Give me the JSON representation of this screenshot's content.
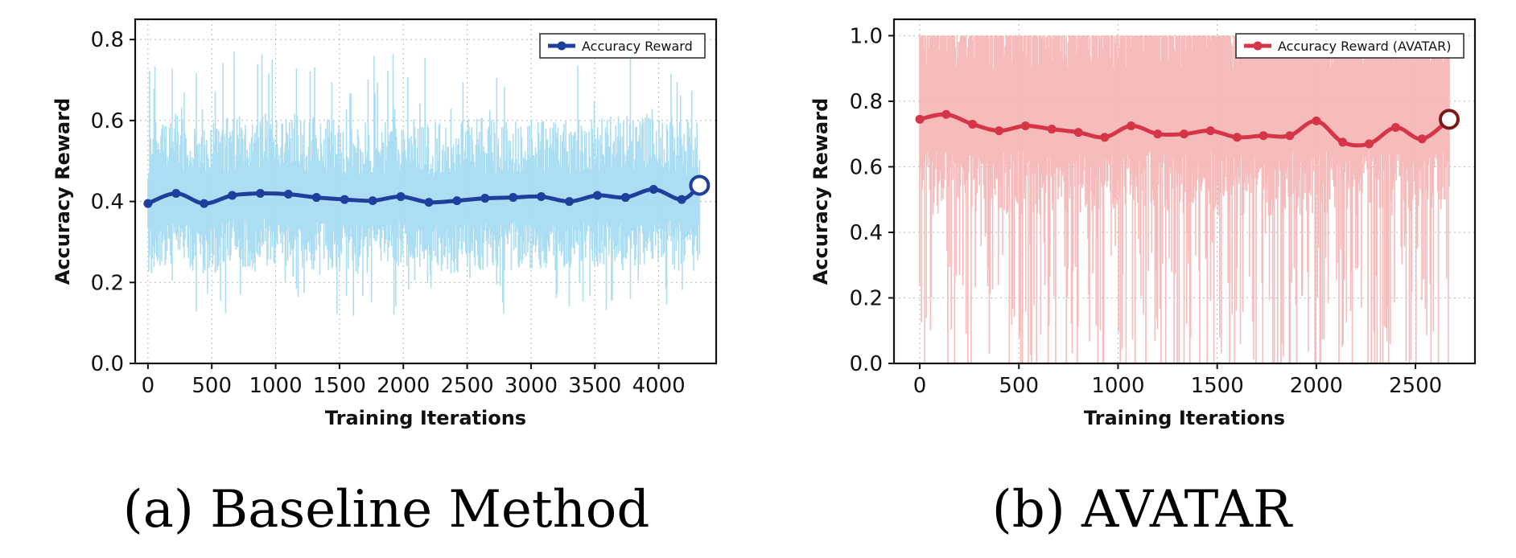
{
  "chart_data": [
    {
      "type": "line",
      "caption": "(a) Baseline Method",
      "xlabel": "Training Iterations",
      "ylabel": "Accuracy Reward",
      "xlim": [
        -100,
        4450
      ],
      "ylim": [
        0.0,
        0.85
      ],
      "xticks": [
        0,
        500,
        1000,
        1500,
        2000,
        2500,
        3000,
        3500,
        4000
      ],
      "yticks": [
        0.0,
        0.2,
        0.4,
        0.6,
        0.8
      ],
      "ytick_labels": [
        "0.0",
        "0.2",
        "0.4",
        "0.6",
        "0.8"
      ],
      "grid": true,
      "legend_position": "top-right",
      "colors": {
        "raw": "#a8dcf2",
        "line": "#1f3f9c",
        "endpoint": "#1f3f9c"
      },
      "raw_band": {
        "x_start": 0,
        "x_end": 4320,
        "typical_low": 0.28,
        "typical_high": 0.55,
        "spike_min": 0.1,
        "spike_max": 0.77
      },
      "series": [
        {
          "name": "Accuracy Reward",
          "x": [
            0,
            220,
            440,
            660,
            880,
            1100,
            1320,
            1540,
            1760,
            1980,
            2200,
            2420,
            2640,
            2860,
            3080,
            3300,
            3520,
            3740,
            3960,
            4180
          ],
          "values": [
            0.395,
            0.42,
            0.395,
            0.415,
            0.42,
            0.418,
            0.41,
            0.405,
            0.402,
            0.412,
            0.398,
            0.402,
            0.408,
            0.41,
            0.412,
            0.4,
            0.415,
            0.41,
            0.43,
            0.405
          ],
          "endpoint": {
            "x": 4320,
            "y": 0.44
          }
        }
      ]
    },
    {
      "type": "line",
      "caption": "(b) AVATAR",
      "xlabel": "Training Iterations",
      "ylabel": "Accuracy Reward",
      "xlim": [
        -130,
        2800
      ],
      "ylim": [
        0.0,
        1.05
      ],
      "xticks": [
        0,
        500,
        1000,
        1500,
        2000,
        2500
      ],
      "yticks": [
        0.0,
        0.2,
        0.4,
        0.6,
        0.8,
        1.0
      ],
      "ytick_labels": [
        "0.0",
        "0.2",
        "0.4",
        "0.6",
        "0.8",
        "1.0"
      ],
      "grid": true,
      "legend_position": "top-right",
      "colors": {
        "raw": "#f5b7b7",
        "line": "#d63447",
        "endpoint": "#7a1a1a"
      },
      "raw_band": {
        "x_start": 0,
        "x_end": 2670,
        "typical_low": 0.5,
        "typical_high": 1.0,
        "spike_min": 0.0,
        "spike_max": 1.0
      },
      "series": [
        {
          "name": "Accuracy Reward (AVATAR)",
          "x": [
            0,
            133,
            266,
            400,
            533,
            666,
            800,
            933,
            1066,
            1200,
            1333,
            1466,
            1600,
            1733,
            1866,
            2000,
            2133,
            2266,
            2400,
            2533
          ],
          "values": [
            0.745,
            0.76,
            0.73,
            0.71,
            0.725,
            0.715,
            0.705,
            0.69,
            0.725,
            0.7,
            0.7,
            0.71,
            0.69,
            0.695,
            0.695,
            0.74,
            0.675,
            0.67,
            0.72,
            0.685
          ],
          "endpoint": {
            "x": 2670,
            "y": 0.745
          }
        }
      ]
    }
  ]
}
